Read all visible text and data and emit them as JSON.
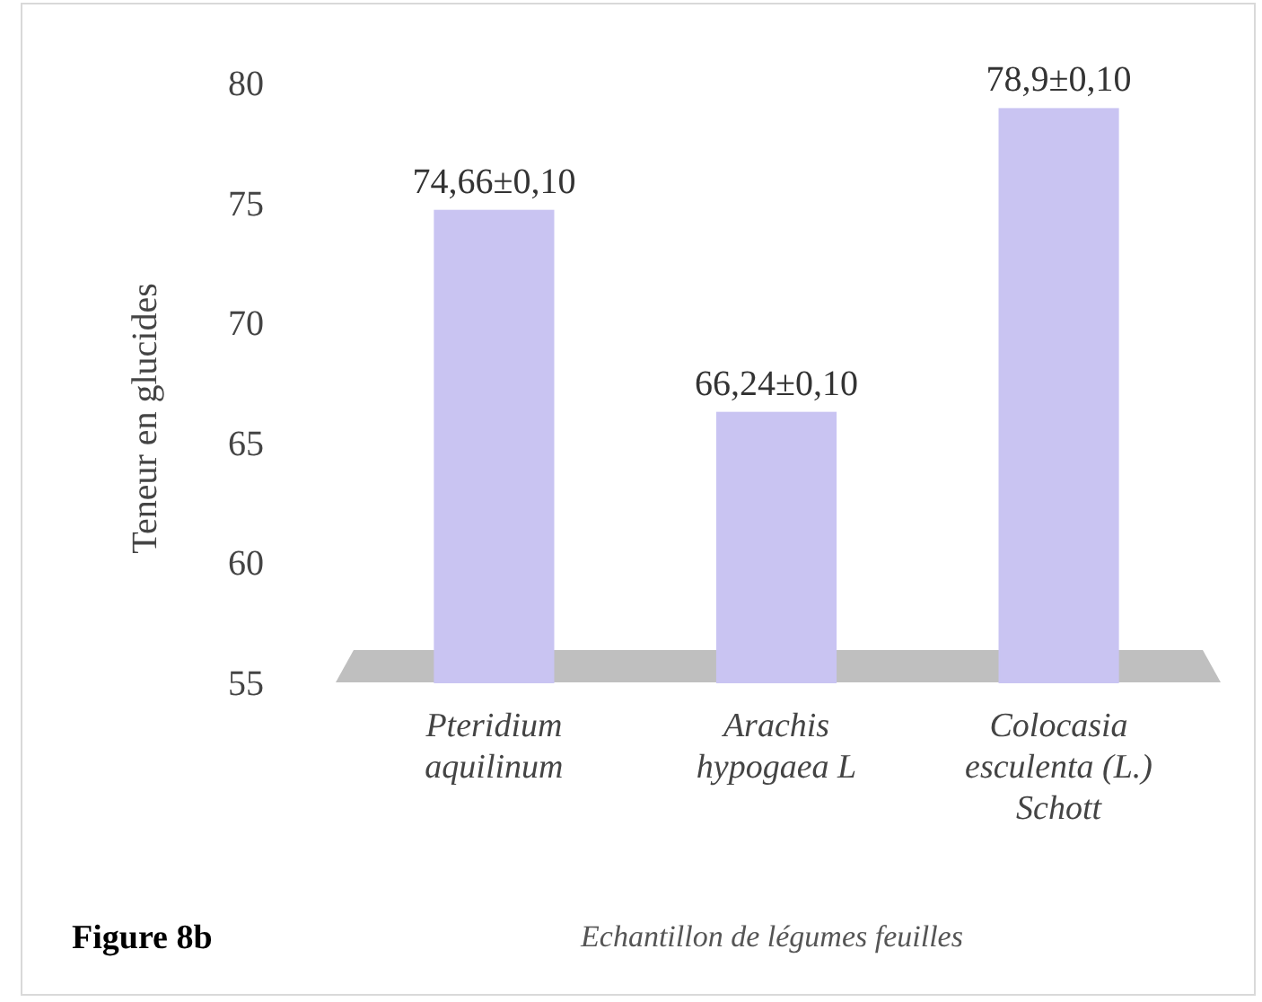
{
  "chart_data": {
    "type": "bar",
    "ylabel": "Teneur en glucides",
    "xlabel": "Echantillon de légumes feuilles",
    "categories": [
      "Pteridium aquilinum",
      "Arachis hypogaea L",
      "Colocasia esculenta (L.) Schott"
    ],
    "values": [
      74.66,
      66.24,
      78.9
    ],
    "value_labels": [
      "74,66±0,10",
      "66,24±0,10",
      "78,9±0,10"
    ],
    "color": "#c9c4f2",
    "ylim": [
      55,
      80
    ],
    "yticks": [
      55,
      60,
      65,
      70,
      75,
      80
    ],
    "annotations": [
      "Figure 8b"
    ]
  }
}
